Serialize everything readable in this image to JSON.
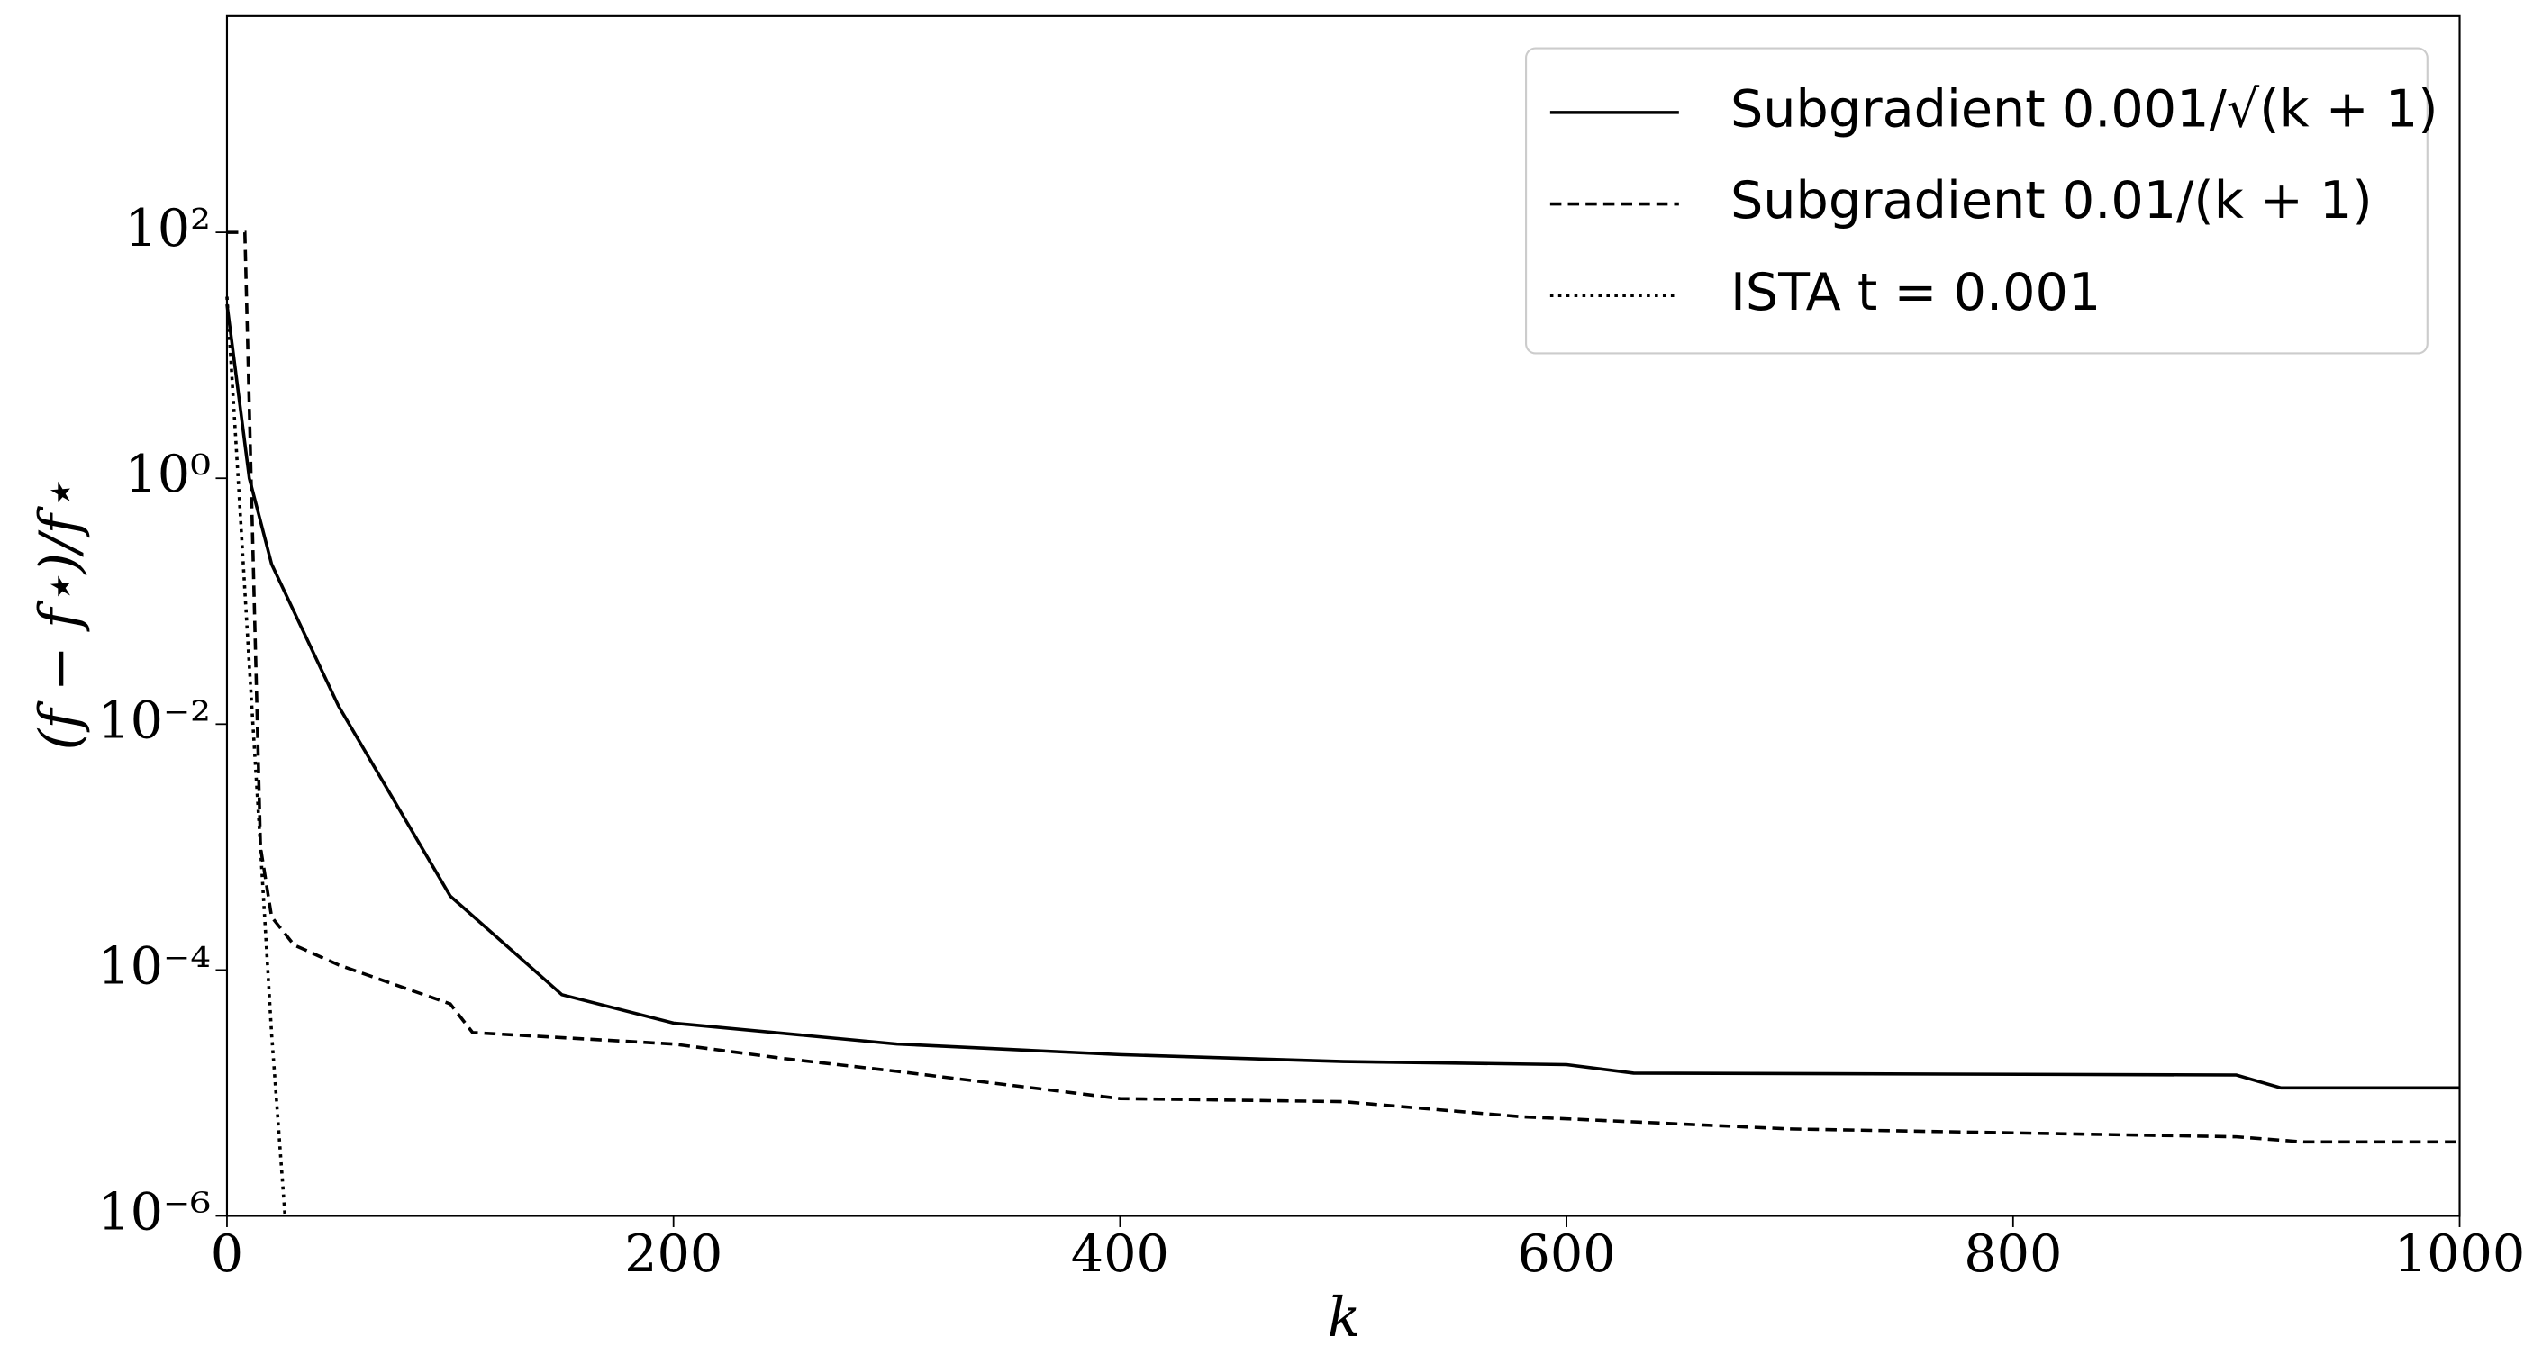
{
  "chart_data": {
    "type": "line",
    "x_label": "k",
    "y_label": "(f − f⋆)/f⋆",
    "log_y": true,
    "grid": false,
    "legend": "upper right",
    "xlim": [
      0,
      1000
    ],
    "xticks": [
      0,
      200,
      400,
      600,
      800,
      1000
    ],
    "ylim": [
      1e-06,
      5750
    ],
    "yticks": [
      {
        "value": 1e-06,
        "label": "10⁻⁶"
      },
      {
        "value": 0.0001,
        "label": "10⁻⁴"
      },
      {
        "value": 0.01,
        "label": "10⁻²"
      },
      {
        "value": 1,
        "label": "10⁰"
      },
      {
        "value": 100,
        "label": "10²"
      }
    ],
    "series": [
      {
        "name": "Subgradient 0.001/√(k + 1)",
        "color": "#000000",
        "dash": "solid",
        "x": [
          0,
          10,
          20,
          50,
          100,
          150,
          200,
          300,
          400,
          500,
          600,
          630,
          900,
          920,
          1000
        ],
        "values": [
          26,
          1,
          0.2,
          0.014,
          0.0004,
          6.3e-05,
          3.7e-05,
          2.5e-05,
          2.05e-05,
          1.8e-05,
          1.7e-05,
          1.45e-05,
          1.4e-05,
          1.1e-05,
          1.1e-05
        ]
      },
      {
        "name": "Subgradient 0.01/(k + 1)",
        "color": "#000000",
        "dash": "dashed",
        "x": [
          0,
          8,
          15,
          20,
          30,
          50,
          100,
          110,
          200,
          250,
          300,
          400,
          500,
          580,
          700,
          900,
          930,
          1000
        ],
        "values": [
          100,
          100,
          0.001,
          0.00027,
          0.00016,
          0.00011,
          5.3e-05,
          3.1e-05,
          2.5e-05,
          1.9e-05,
          1.5e-05,
          9e-06,
          8.5e-06,
          6.4e-06,
          5.1e-06,
          4.4e-06,
          4e-06,
          4e-06
        ]
      },
      {
        "name": "ISTA t = 0.001",
        "color": "#000000",
        "dash": "dotted",
        "x": [
          0,
          5,
          10,
          15,
          20,
          26
        ],
        "values": [
          30,
          1,
          0.03,
          0.001,
          3e-05,
          1e-06
        ]
      }
    ]
  }
}
